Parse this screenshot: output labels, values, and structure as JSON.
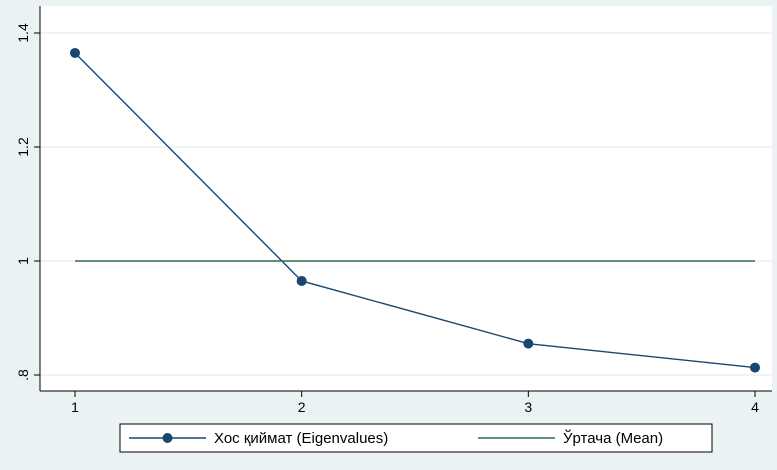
{
  "chart_data": {
    "type": "line",
    "x": [
      1,
      2,
      3,
      4
    ],
    "xlim": [
      1,
      4
    ],
    "ylim": [
      0.8,
      1.4
    ],
    "x_ticks": [
      {
        "value": 1,
        "label": "1"
      },
      {
        "value": 2,
        "label": "2"
      },
      {
        "value": 3,
        "label": "3"
      },
      {
        "value": 4,
        "label": "4"
      }
    ],
    "y_ticks": [
      {
        "value": 0.8,
        "label": ".8"
      },
      {
        "value": 1.0,
        "label": "1"
      },
      {
        "value": 1.2,
        "label": "1.2"
      },
      {
        "value": 1.4,
        "label": "1.4"
      }
    ],
    "grid": true,
    "legend_position": "bottom",
    "series": [
      {
        "name": "Хос қиймат (Eigenvalues)",
        "values": [
          1.365,
          0.965,
          0.855,
          0.813
        ],
        "color": "#1a476f",
        "marker": "circle"
      },
      {
        "name": "Ўртача (Mean)",
        "values": [
          1.0,
          1.0,
          1.0,
          1.0
        ],
        "color": "#2d6d4f",
        "marker": "none"
      }
    ],
    "colors": {
      "background": "#eaf2f3",
      "plot_background": "#ffffff",
      "grid": "#e3e8ea"
    }
  }
}
